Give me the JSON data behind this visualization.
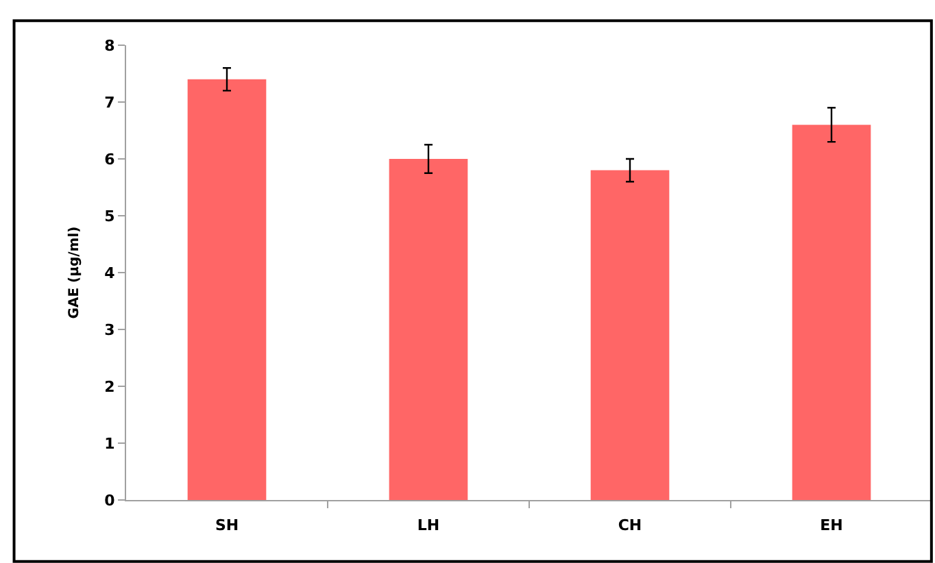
{
  "chart_data": {
    "type": "bar",
    "ylabel": "GAE (µg/ml)",
    "categories": [
      "SH",
      "LH",
      "CH",
      "EH"
    ],
    "values": [
      7.4,
      6.0,
      5.8,
      6.6
    ],
    "errors": [
      0.2,
      0.25,
      0.2,
      0.3
    ],
    "color": "#ff6666",
    "ylim": [
      0,
      8
    ],
    "yticks": [
      0,
      1,
      2,
      3,
      4,
      5,
      6,
      7,
      8
    ]
  }
}
